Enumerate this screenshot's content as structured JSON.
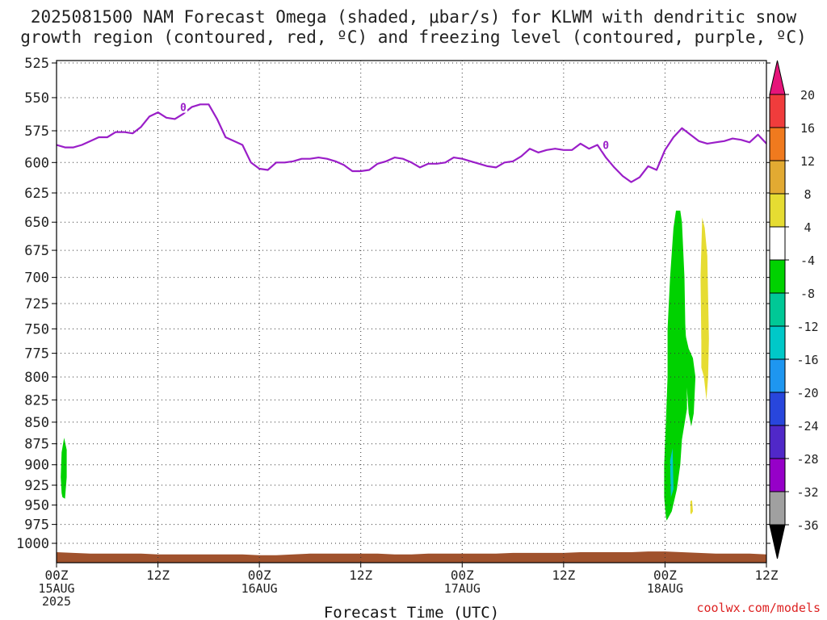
{
  "title_line1": "2025081500 NAM Forecast Omega (shaded, μbar/s) for KLWM with dendritic snow",
  "title_line2": "growth region (contoured, red, ºC) and freezing level (contoured, purple, ºC)",
  "watermark": "coolwx.com/models",
  "chart_data": {
    "type": "area",
    "xlabel": "Forecast Time (UTC)",
    "ylabel": "",
    "x_unit": "forecast hour",
    "xlim": [
      0,
      84
    ],
    "ylim": [
      525,
      1000
    ],
    "y_log": true,
    "y_ticks": [
      525,
      550,
      575,
      600,
      625,
      650,
      675,
      700,
      725,
      750,
      775,
      800,
      825,
      850,
      875,
      900,
      925,
      950,
      975,
      1000
    ],
    "x_ticks": [
      {
        "hour": 0,
        "l1": "00Z",
        "l2": "15AUG",
        "l3": "2025"
      },
      {
        "hour": 12,
        "l1": "12Z",
        "l2": "",
        "l3": ""
      },
      {
        "hour": 24,
        "l1": "00Z",
        "l2": "16AUG",
        "l3": ""
      },
      {
        "hour": 36,
        "l1": "12Z",
        "l2": "",
        "l3": ""
      },
      {
        "hour": 48,
        "l1": "00Z",
        "l2": "17AUG",
        "l3": ""
      },
      {
        "hour": 60,
        "l1": "12Z",
        "l2": "",
        "l3": ""
      },
      {
        "hour": 72,
        "l1": "00Z",
        "l2": "18AUG",
        "l3": ""
      },
      {
        "hour": 84,
        "l1": "12Z",
        "l2": "",
        "l3": ""
      }
    ],
    "grid": true,
    "colorbar": {
      "label_values": [
        20,
        16,
        12,
        8,
        4,
        -4,
        -8,
        -12,
        -16,
        -20,
        -24,
        -28,
        -32,
        -36
      ],
      "bins": [
        {
          "min": 16,
          "max": 20,
          "color": "#f03c3c"
        },
        {
          "min": 12,
          "max": 16,
          "color": "#f07a1e"
        },
        {
          "min": 8,
          "max": 12,
          "color": "#e2aa32"
        },
        {
          "min": 4,
          "max": 8,
          "color": "#e6dc32"
        },
        {
          "min": -4,
          "max": 4,
          "color": "#ffffff"
        },
        {
          "min": -8,
          "max": -4,
          "color": "#00d200"
        },
        {
          "min": -12,
          "max": -8,
          "color": "#00c896"
        },
        {
          "min": -16,
          "max": -12,
          "color": "#00c8c8"
        },
        {
          "min": -20,
          "max": -16,
          "color": "#1e96f0"
        },
        {
          "min": -24,
          "max": -20,
          "color": "#2846dc"
        },
        {
          "min": -28,
          "max": -24,
          "color": "#5028c8"
        },
        {
          "min": -32,
          "max": -28,
          "color": "#9600c8"
        },
        {
          "min": -36,
          "max": -32,
          "color": "#a0a0a0"
        }
      ],
      "top_extend_color": "#e6147a",
      "bottom_extend_color": "#000000"
    },
    "freezing_level": {
      "label": "0",
      "color": "#9a1ec8",
      "x": [
        0,
        1,
        2,
        3,
        4,
        5,
        6,
        7,
        8,
        9,
        10,
        11,
        12,
        13,
        14,
        15,
        16,
        17,
        18,
        19,
        20,
        21,
        22,
        23,
        24,
        25,
        26,
        27,
        28,
        29,
        30,
        31,
        32,
        33,
        34,
        35,
        36,
        37,
        38,
        39,
        40,
        41,
        42,
        43,
        44,
        45,
        46,
        47,
        48,
        49,
        50,
        51,
        52,
        53,
        54,
        55,
        56,
        57,
        58,
        59,
        60,
        61,
        62,
        63,
        64,
        65,
        66,
        67,
        68,
        69,
        70,
        71,
        72,
        73,
        74,
        75,
        76,
        77,
        78,
        79,
        80,
        81,
        82,
        83,
        84
      ],
      "y": [
        586,
        588,
        588,
        586,
        583,
        580,
        580,
        576,
        576,
        577,
        572,
        564,
        561,
        565,
        566,
        562,
        557,
        555,
        555,
        566,
        580,
        583,
        586,
        600,
        605,
        606,
        600,
        600,
        599,
        597,
        597,
        596,
        597,
        599,
        602,
        607,
        607,
        606,
        601,
        599,
        596,
        597,
        600,
        604,
        601,
        601,
        600,
        596,
        597,
        599,
        601,
        603,
        604,
        600,
        599,
        595,
        589,
        592,
        590,
        589,
        590,
        590,
        585,
        589,
        586,
        596,
        604,
        611,
        616,
        612,
        603,
        606,
        590,
        580,
        573,
        578,
        583,
        585,
        584,
        583,
        581,
        582,
        584,
        578,
        585
      ]
    },
    "omega_regions": [
      {
        "value_bin": "-8 to -4",
        "x": [
          0.7,
          1.0,
          1.2,
          1.2,
          0.9,
          0.6,
          0.5,
          0.6
        ],
        "p": [
          940,
          942,
          915,
          882,
          868,
          885,
          915,
          935
        ]
      },
      {
        "value_bin": "-8 to -4",
        "x": [
          72.2,
          72.8,
          73.4,
          73.8,
          74.0,
          74.6,
          74.6,
          74.4,
          74.3,
          74.0,
          73.8,
          73.3,
          73.0,
          72.6,
          72.3,
          72.3,
          72.1,
          71.9,
          71.9,
          72.1,
          72.2
        ],
        "p": [
          970,
          958,
          930,
          900,
          870,
          835,
          780,
          745,
          700,
          650,
          640,
          640,
          655,
          700,
          750,
          800,
          850,
          900,
          940,
          965,
          970
        ]
      },
      {
        "value_bin": "-8 to -4",
        "x": [
          74.4,
          74.8,
          75.3,
          75.6,
          75.4,
          75.1,
          74.8,
          74.5,
          74.4
        ],
        "p": [
          755,
          770,
          780,
          800,
          840,
          855,
          840,
          800,
          755
        ]
      },
      {
        "value_bin": "4 to 8",
        "x": [
          76.4,
          76.7,
          77.0,
          77.2,
          77.1,
          76.9,
          76.6,
          76.3,
          76.2,
          76.4
        ],
        "p": [
          646,
          655,
          680,
          760,
          800,
          825,
          800,
          760,
          700,
          646
        ]
      },
      {
        "value_bin": "4 to 8",
        "x": [
          76.3,
          76.6,
          76.8,
          76.6,
          76.3
        ],
        "p": [
          710,
          720,
          780,
          800,
          790
        ]
      },
      {
        "value_bin": "4 to 8",
        "x": [
          75.0,
          75.2,
          75.3,
          75.1,
          75.0
        ],
        "p": [
          945,
          944,
          958,
          962,
          960
        ]
      }
    ],
    "terrain": {
      "color": "#a0522d",
      "x": [
        0,
        2,
        4,
        6,
        8,
        10,
        12,
        14,
        16,
        18,
        20,
        22,
        24,
        26,
        28,
        30,
        32,
        34,
        36,
        38,
        40,
        42,
        44,
        46,
        48,
        50,
        52,
        54,
        56,
        58,
        60,
        62,
        64,
        66,
        68,
        70,
        72,
        74,
        76,
        78,
        80,
        82,
        84
      ],
      "top_p": [
        1012,
        1013,
        1014,
        1014,
        1014,
        1014,
        1015,
        1015,
        1015,
        1015,
        1015,
        1015,
        1016,
        1016,
        1015,
        1014,
        1014,
        1014,
        1014,
        1014,
        1015,
        1015,
        1014,
        1014,
        1014,
        1014,
        1014,
        1013,
        1013,
        1013,
        1013,
        1012,
        1012,
        1012,
        1012,
        1011,
        1011,
        1012,
        1013,
        1014,
        1014,
        1014,
        1015
      ]
    }
  }
}
